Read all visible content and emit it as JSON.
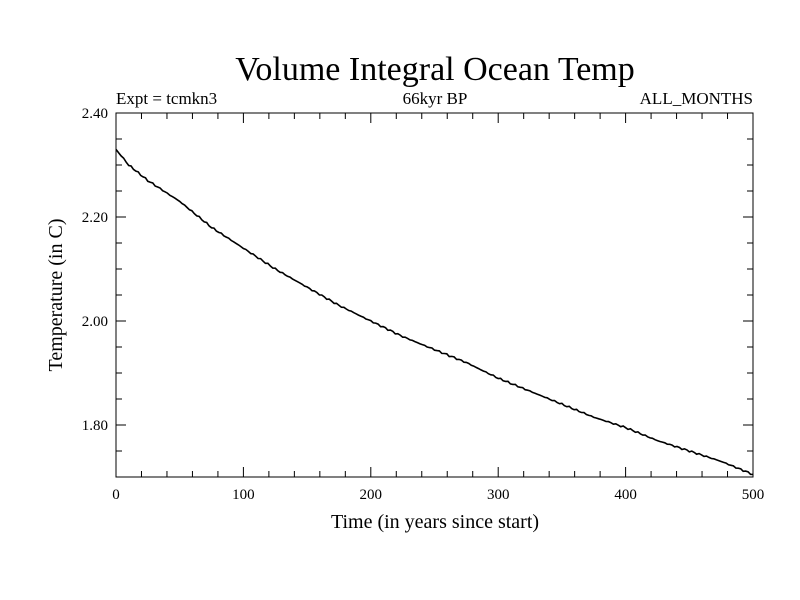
{
  "chart_data": {
    "type": "line",
    "title": "Volume Integral Ocean Temp",
    "subtitle_left": "Expt = tcmkn3",
    "subtitle_center": "66kyr BP",
    "subtitle_right": "ALL_MONTHS",
    "xlabel": "Time (in years since start)",
    "ylabel": "Temperature (in C)",
    "xlim": [
      0,
      500
    ],
    "ylim": [
      1.7,
      2.4
    ],
    "xticks": [
      0,
      100,
      200,
      300,
      400,
      500
    ],
    "xtick_labels": [
      "0",
      "100",
      "200",
      "300",
      "400",
      "500"
    ],
    "yticks": [
      1.8,
      2.0,
      2.2,
      2.4
    ],
    "ytick_labels": [
      "1.80",
      "2.00",
      "2.20",
      "2.40"
    ],
    "grid": false,
    "legend": "none",
    "line_color": "#000000",
    "series": [
      {
        "x": [
          0,
          10,
          25,
          50,
          75,
          100,
          125,
          150,
          175,
          200,
          225,
          250,
          275,
          300,
          325,
          350,
          375,
          400,
          425,
          450,
          475,
          500
        ],
        "y": [
          2.33,
          2.3,
          2.27,
          2.23,
          2.18,
          2.14,
          2.1,
          2.065,
          2.03,
          2.0,
          1.97,
          1.945,
          1.92,
          1.89,
          1.865,
          1.84,
          1.815,
          1.795,
          1.77,
          1.75,
          1.73,
          1.705
        ]
      }
    ]
  }
}
